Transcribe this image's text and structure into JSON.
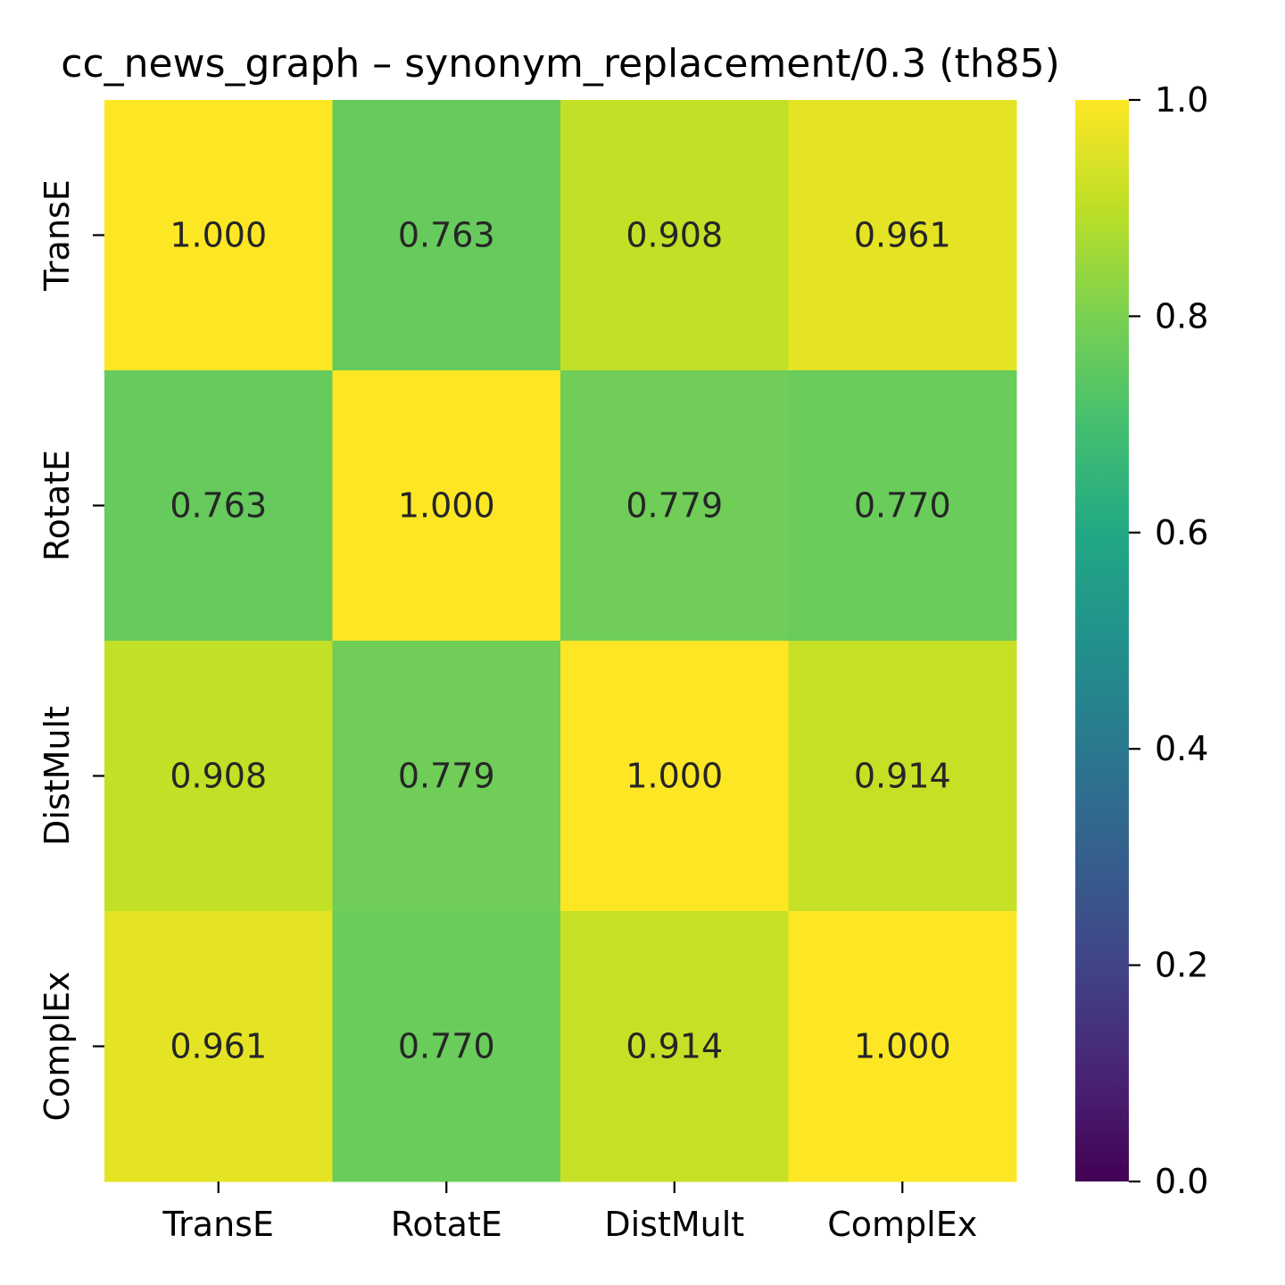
{
  "chart_data": {
    "type": "heatmap",
    "title": "cc_news_graph – synonym_replacement/0.3  (th85)",
    "xlabel": "",
    "ylabel": "",
    "x_categories": [
      "TransE",
      "RotatE",
      "DistMult",
      "ComplEx"
    ],
    "y_categories": [
      "TransE",
      "RotatE",
      "DistMult",
      "ComplEx"
    ],
    "values": [
      [
        1.0,
        0.763,
        0.908,
        0.961
      ],
      [
        0.763,
        1.0,
        0.779,
        0.77
      ],
      [
        0.908,
        0.779,
        1.0,
        0.914
      ],
      [
        0.961,
        0.77,
        0.914,
        1.0
      ]
    ],
    "value_labels": [
      [
        "1.000",
        "0.763",
        "0.908",
        "0.961"
      ],
      [
        "0.763",
        "1.000",
        "0.779",
        "0.770"
      ],
      [
        "0.908",
        "0.779",
        "1.000",
        "0.914"
      ],
      [
        "0.961",
        "0.770",
        "0.914",
        "1.000"
      ]
    ],
    "colorbar": {
      "colormap": "viridis",
      "range": [
        0,
        1
      ],
      "ticks": [
        0.0,
        0.2,
        0.4,
        0.6,
        0.8,
        1.0
      ],
      "tick_labels": [
        "0.0",
        "0.2",
        "0.4",
        "0.6",
        "0.8",
        "1.0"
      ]
    },
    "annotation_color": "#262626"
  }
}
